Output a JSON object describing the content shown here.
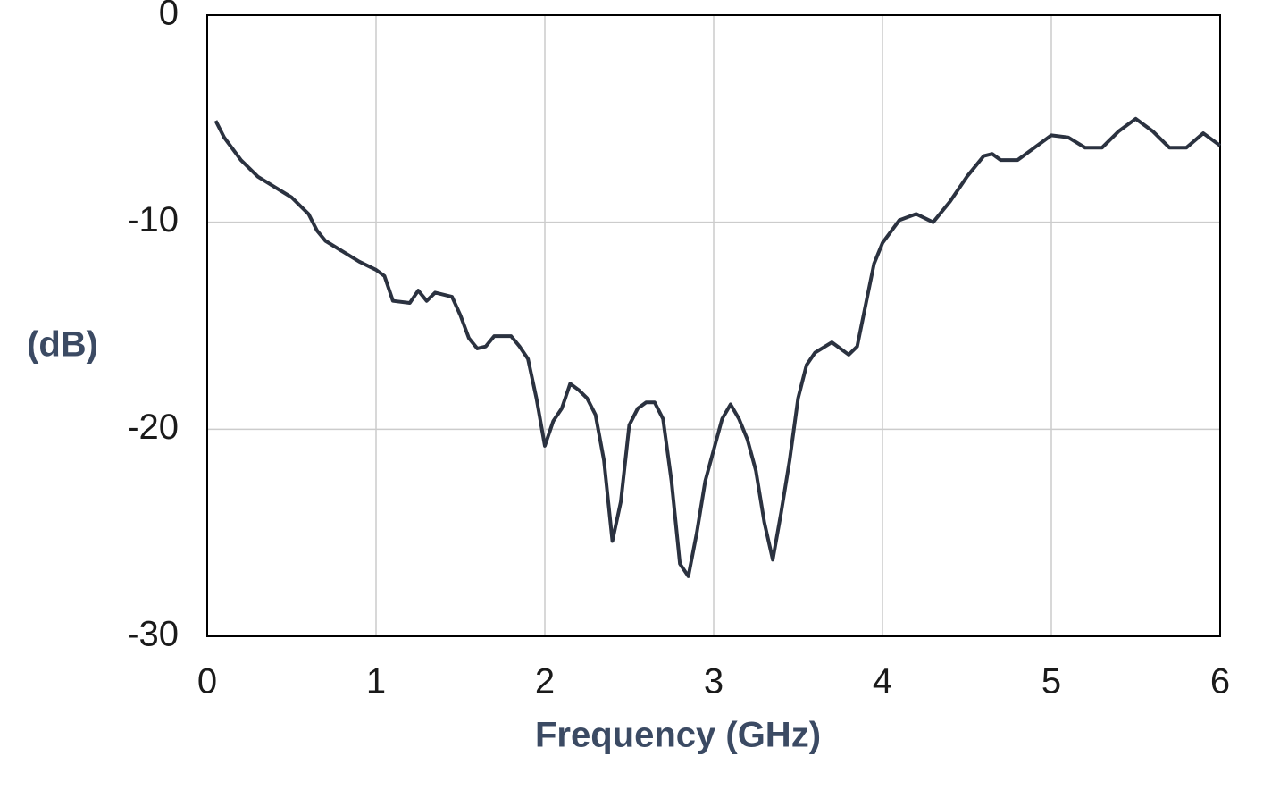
{
  "chart_data": {
    "type": "line",
    "x_label": "Frequency (GHz)",
    "y_label": "(dB)",
    "xlim": [
      0,
      6
    ],
    "xticks": [
      0,
      1,
      2,
      3,
      4,
      5,
      6
    ],
    "ylim": [
      -30,
      0
    ],
    "yticks": [
      -30,
      -20,
      -10,
      0
    ],
    "grid": true,
    "series": [
      {
        "color": "#2b3240",
        "x": [
          0.05,
          0.1,
          0.2,
          0.3,
          0.4,
          0.5,
          0.6,
          0.65,
          0.7,
          0.8,
          0.9,
          1.0,
          1.05,
          1.1,
          1.2,
          1.25,
          1.3,
          1.35,
          1.45,
          1.5,
          1.55,
          1.6,
          1.65,
          1.7,
          1.8,
          1.85,
          1.9,
          1.95,
          2.0,
          2.05,
          2.1,
          2.15,
          2.2,
          2.25,
          2.3,
          2.35,
          2.4,
          2.45,
          2.5,
          2.55,
          2.6,
          2.65,
          2.7,
          2.75,
          2.8,
          2.85,
          2.9,
          2.95,
          3.0,
          3.05,
          3.1,
          3.15,
          3.2,
          3.25,
          3.3,
          3.35,
          3.4,
          3.45,
          3.5,
          3.55,
          3.6,
          3.7,
          3.8,
          3.85,
          3.9,
          3.95,
          4.0,
          4.1,
          4.2,
          4.3,
          4.4,
          4.5,
          4.6,
          4.65,
          4.7,
          4.8,
          4.9,
          5.0,
          5.1,
          5.2,
          5.3,
          5.4,
          5.5,
          5.6,
          5.7,
          5.8,
          5.9,
          6.0
        ],
        "values": [
          -5.1,
          -5.9,
          -7.0,
          -7.8,
          -8.3,
          -8.8,
          -9.6,
          -10.4,
          -10.9,
          -11.4,
          -11.9,
          -12.3,
          -12.6,
          -13.8,
          -13.9,
          -13.3,
          -13.8,
          -13.4,
          -13.6,
          -14.5,
          -15.6,
          -16.1,
          -16.0,
          -15.5,
          -15.5,
          -16.0,
          -16.6,
          -18.5,
          -20.8,
          -19.6,
          -19.0,
          -17.8,
          -18.1,
          -18.5,
          -19.3,
          -21.5,
          -25.4,
          -23.5,
          -19.8,
          -19.0,
          -18.7,
          -18.7,
          -19.5,
          -22.5,
          -26.5,
          -27.1,
          -25.0,
          -22.5,
          -21.0,
          -19.5,
          -18.8,
          -19.5,
          -20.5,
          -22.0,
          -24.5,
          -26.3,
          -24.0,
          -21.5,
          -18.5,
          -16.9,
          -16.3,
          -15.8,
          -16.4,
          -16.0,
          -14.0,
          -12.0,
          -11.0,
          -9.9,
          -9.6,
          -10.0,
          -9.0,
          -7.8,
          -6.8,
          -6.7,
          -7.0,
          -7.0,
          -6.4,
          -5.8,
          -5.9,
          -6.4,
          -6.4,
          -5.6,
          -5.0,
          -5.6,
          -6.4,
          -6.4,
          -5.7,
          -6.3
        ]
      }
    ]
  }
}
